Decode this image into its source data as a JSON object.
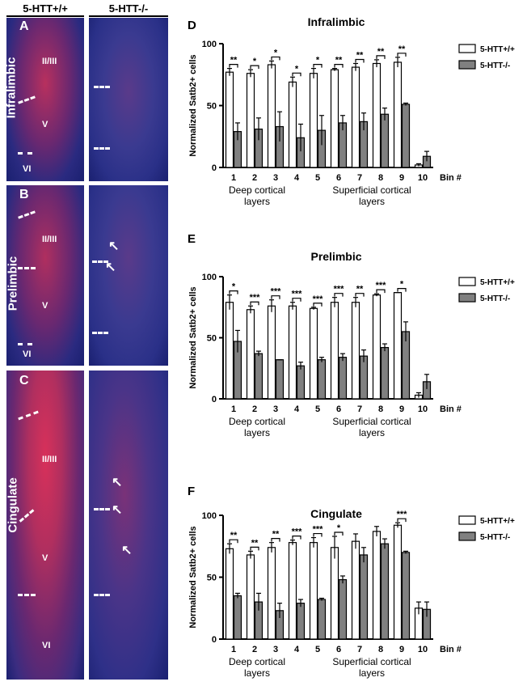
{
  "columns": {
    "wt": "5-HTT+/+",
    "ko": "5-HTT-/-"
  },
  "micrographs": [
    {
      "letter": "A",
      "region": "Infralimbic",
      "layers": [
        "II/III",
        "V",
        "VI"
      ]
    },
    {
      "letter": "B",
      "region": "Prelimbic",
      "layers": [
        "II/III",
        "V",
        "VI"
      ]
    },
    {
      "letter": "C",
      "region": "Cingulate",
      "layers": [
        "II/III",
        "V",
        "VI"
      ]
    }
  ],
  "colors": {
    "wt_bar": "#ffffff",
    "ko_bar": "#808080",
    "tissue_dark": "#141a5a",
    "nuclei": "#e23a6a"
  },
  "chart_data": [
    {
      "type": "bar",
      "panel": "D",
      "title": "Infralimbic",
      "ylabel": "Normalized Satb2+ cells",
      "xlabel": "Bin #",
      "ylim": [
        0,
        100
      ],
      "yticks": [
        0,
        50,
        100
      ],
      "categories": [
        "1",
        "2",
        "3",
        "4",
        "5",
        "6",
        "7",
        "8",
        "9",
        "10"
      ],
      "group_labels": [
        "Deep cortical layers",
        "Superficial cortical layers"
      ],
      "series": [
        {
          "name": "5-HTT+/+",
          "values": [
            77,
            76,
            83,
            69,
            76,
            79,
            81,
            84,
            85,
            2
          ],
          "errors": [
            3,
            3,
            3,
            4,
            4,
            1,
            3,
            3,
            4,
            1
          ]
        },
        {
          "name": "5-HTT-/-",
          "values": [
            29,
            31,
            33,
            24,
            30,
            36,
            37,
            43,
            51,
            9
          ],
          "errors": [
            7,
            9,
            12,
            11,
            12,
            6,
            7,
            5,
            1,
            4
          ]
        }
      ],
      "significance": [
        "**",
        "*",
        "*",
        "*",
        "*",
        "**",
        "**",
        "**",
        "**",
        ""
      ]
    },
    {
      "type": "bar",
      "panel": "E",
      "title": "Prelimbic",
      "ylabel": "Normalized Satb2+ cells",
      "xlabel": "Bin #",
      "ylim": [
        0,
        100
      ],
      "yticks": [
        0,
        50,
        100
      ],
      "categories": [
        "1",
        "2",
        "3",
        "4",
        "5",
        "6",
        "7",
        "8",
        "9",
        "10"
      ],
      "group_labels": [
        "Deep cortical layers",
        "Superficial cortical layers"
      ],
      "series": [
        {
          "name": "5-HTT+/+",
          "values": [
            79,
            73,
            76,
            76,
            74,
            79,
            79,
            85,
            87,
            3
          ],
          "errors": [
            6,
            3,
            5,
            3,
            1,
            4,
            4,
            1,
            0,
            2
          ]
        },
        {
          "name": "5-HTT-/-",
          "values": [
            47,
            37,
            32,
            27,
            32,
            34,
            35,
            42,
            55,
            14
          ],
          "errors": [
            9,
            2,
            0,
            3,
            2,
            3,
            5,
            3,
            8,
            6
          ]
        }
      ],
      "significance": [
        "*",
        "***",
        "***",
        "***",
        "***",
        "***",
        "**",
        "***",
        "*",
        ""
      ]
    },
    {
      "type": "bar",
      "panel": "F",
      "title": "Cingulate",
      "ylabel": "Normalized Satb2+ cells",
      "xlabel": "Bin #",
      "ylim": [
        0,
        100
      ],
      "yticks": [
        0,
        50,
        100
      ],
      "categories": [
        "1",
        "2",
        "3",
        "4",
        "5",
        "6",
        "7",
        "8",
        "9",
        "10"
      ],
      "group_labels": [
        "Deep cortical layers",
        "Superficial cortical layers"
      ],
      "series": [
        {
          "name": "5-HTT+/+",
          "values": [
            73,
            68,
            74,
            78,
            78,
            74,
            79,
            87,
            92,
            25
          ],
          "errors": [
            4,
            3,
            4,
            2,
            4,
            9,
            6,
            4,
            2,
            5
          ]
        },
        {
          "name": "5-HTT-/-",
          "values": [
            35,
            30,
            23,
            29,
            32,
            48,
            68,
            77,
            70,
            24
          ],
          "errors": [
            2,
            7,
            6,
            3,
            1,
            3,
            6,
            4,
            1,
            6
          ]
        }
      ],
      "significance": [
        "**",
        "**",
        "**",
        "***",
        "***",
        "*",
        "",
        "",
        "***",
        ""
      ]
    }
  ]
}
